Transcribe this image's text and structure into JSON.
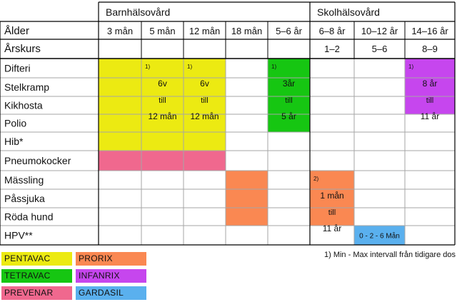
{
  "groups": [
    "Barnhälsovård",
    "Skolhälsovård"
  ],
  "row_labels": {
    "alder": "Ålder",
    "arskurs": "Årskurs"
  },
  "ages": [
    "3 mån",
    "5 mån",
    "12 mån",
    "18 mån",
    "5–6 år",
    "6–8 år",
    "10–12 år",
    "14–16 år"
  ],
  "grades": [
    "",
    "",
    "",
    "",
    "",
    "1–2",
    "5–6",
    "8–9"
  ],
  "diseases": [
    "Difteri",
    "Stelkramp",
    "Kikhosta",
    "Polio",
    "Hib*",
    "Pneumokocker",
    "Mässling",
    "Påssjuka",
    "Röda hund",
    "HPV**"
  ],
  "colors": {
    "pentavac": "#ecea12",
    "tetravac": "#16c612",
    "prevenar": "#f0688e",
    "prorix": "#fa8852",
    "infanrix": "#c646ee",
    "gardasil": "#5ab0ee",
    "border": "#000000",
    "grid": "#a6a6a6"
  },
  "blocks": [
    {
      "id": "pentavac-block",
      "color_key": "pentavac",
      "col_start": 0,
      "col_end": 2,
      "row_start": 0,
      "row_end": 4
    },
    {
      "id": "prevenar-block",
      "color_key": "prevenar",
      "col_start": 0,
      "col_end": 2,
      "row_start": 5,
      "row_end": 5
    },
    {
      "id": "tetravac-block",
      "color_key": "tetravac",
      "col_start": 4,
      "col_end": 4,
      "row_start": 0,
      "row_end": 3
    },
    {
      "id": "infanrix-block",
      "color_key": "infanrix",
      "col_start": 7,
      "col_end": 7,
      "row_start": 0,
      "row_end": 2
    },
    {
      "id": "prorix-18-block",
      "color_key": "prorix",
      "col_start": 3,
      "col_end": 3,
      "row_start": 6,
      "row_end": 8
    },
    {
      "id": "prorix-6-8-block",
      "color_key": "prorix",
      "col_start": 5,
      "col_end": 5,
      "row_start": 6,
      "row_end": 8
    },
    {
      "id": "gardasil-block",
      "color_key": "gardasil",
      "col_start": 6,
      "col_end": 6,
      "row_start": 9,
      "row_end": 9
    }
  ],
  "annotations": [
    {
      "id": "note-5man",
      "col": 1,
      "row_start": 0,
      "row_end": 4,
      "marker": "1)",
      "lines": [
        "6v",
        "till",
        "12 mån"
      ]
    },
    {
      "id": "note-12man",
      "col": 2,
      "row_start": 0,
      "row_end": 4,
      "marker": "1)",
      "lines": [
        "6v",
        "till",
        "12 mån"
      ]
    },
    {
      "id": "note-5-6ar",
      "col": 4,
      "row_start": 0,
      "row_end": 3,
      "marker": "1)",
      "lines": [
        "3år",
        "till",
        "5 år"
      ]
    },
    {
      "id": "note-14-16ar",
      "col": 7,
      "row_start": 0,
      "row_end": 2,
      "marker": "1)",
      "lines": [
        "8 år",
        "till",
        "11 år"
      ]
    },
    {
      "id": "note-6-8ar",
      "col": 5,
      "row_start": 6,
      "row_end": 8,
      "marker": "2)",
      "lines": [
        "1 mån",
        "till",
        "11 år"
      ]
    },
    {
      "id": "note-10-12ar",
      "col": 6,
      "row_start": 9,
      "row_end": 9,
      "marker": "",
      "lines": [
        "0 - 2 - 6 Mån"
      ]
    }
  ],
  "legend": [
    {
      "label": "PENTAVAC",
      "color_key": "pentavac"
    },
    {
      "label": "PRORIX",
      "color_key": "prorix"
    },
    {
      "label": "TETRAVAC",
      "color_key": "tetravac"
    },
    {
      "label": "INFANRIX",
      "color_key": "infanrix"
    },
    {
      "label": "PREVENAR",
      "color_key": "prevenar"
    },
    {
      "label": "GARDASIL",
      "color_key": "gardasil"
    }
  ],
  "footnote": "1) Min - Max intervall från tidigare dos"
}
